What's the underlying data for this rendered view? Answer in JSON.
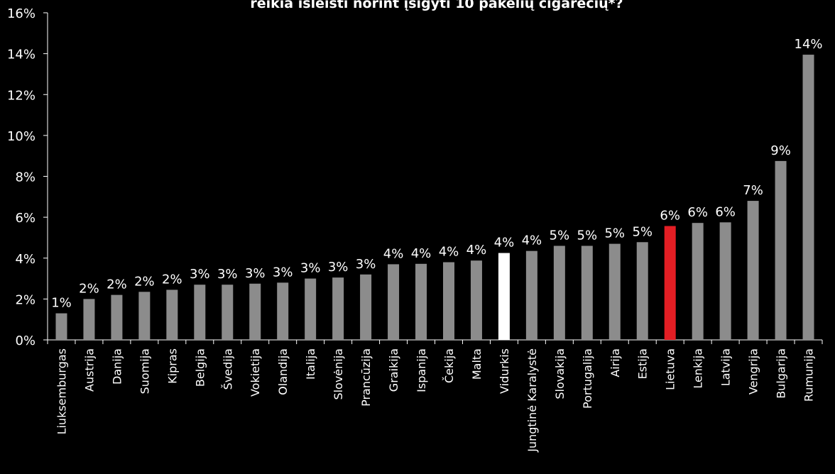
{
  "chart_data": {
    "type": "bar",
    "title": "reikia išleisti norint įsigyti 10 pakelių cigarečių*?",
    "xlabel": "",
    "ylabel": "",
    "ylim": [
      0,
      16
    ],
    "y_ticks": [
      "0%",
      "2%",
      "4%",
      "6%",
      "8%",
      "10%",
      "12%",
      "14%",
      "16%"
    ],
    "categories": [
      "Liuksemburgas",
      "Austrija",
      "Danija",
      "Suomija",
      "Kipras",
      "Belgija",
      "Švedija",
      "Vokietija",
      "Olandija",
      "Italija",
      "Slovėnija",
      "Prancūzija",
      "Graikija",
      "Ispanija",
      "Čekija",
      "Malta",
      "Vidurkis",
      "Jungtinė Karalystė",
      "Slovakija",
      "Portugalija",
      "Airija",
      "Estija",
      "Lietuva",
      "Lenkija",
      "Latvija",
      "Vengrija",
      "Bulgarija",
      "Rumunija"
    ],
    "values": [
      1.3,
      2.0,
      2.2,
      2.35,
      2.45,
      2.7,
      2.7,
      2.75,
      2.8,
      3.0,
      3.05,
      3.2,
      3.7,
      3.72,
      3.8,
      3.88,
      4.25,
      4.35,
      4.6,
      4.6,
      4.7,
      4.78,
      5.57,
      5.72,
      5.75,
      6.8,
      8.75,
      13.95
    ],
    "data_labels": [
      "1%",
      "2%",
      "2%",
      "2%",
      "2%",
      "3%",
      "3%",
      "3%",
      "3%",
      "3%",
      "3%",
      "3%",
      "4%",
      "4%",
      "4%",
      "4%",
      "4%",
      "4%",
      "5%",
      "5%",
      "5%",
      "5%",
      "6%",
      "6%",
      "6%",
      "7%",
      "9%",
      "14%"
    ],
    "colors": {
      "default": "#8c8c8c",
      "Vidurkis": "#ffffff",
      "Lietuva": "#e31e24",
      "background": "#000000",
      "text": "#ffffff"
    },
    "grid": false,
    "legend": "none"
  }
}
